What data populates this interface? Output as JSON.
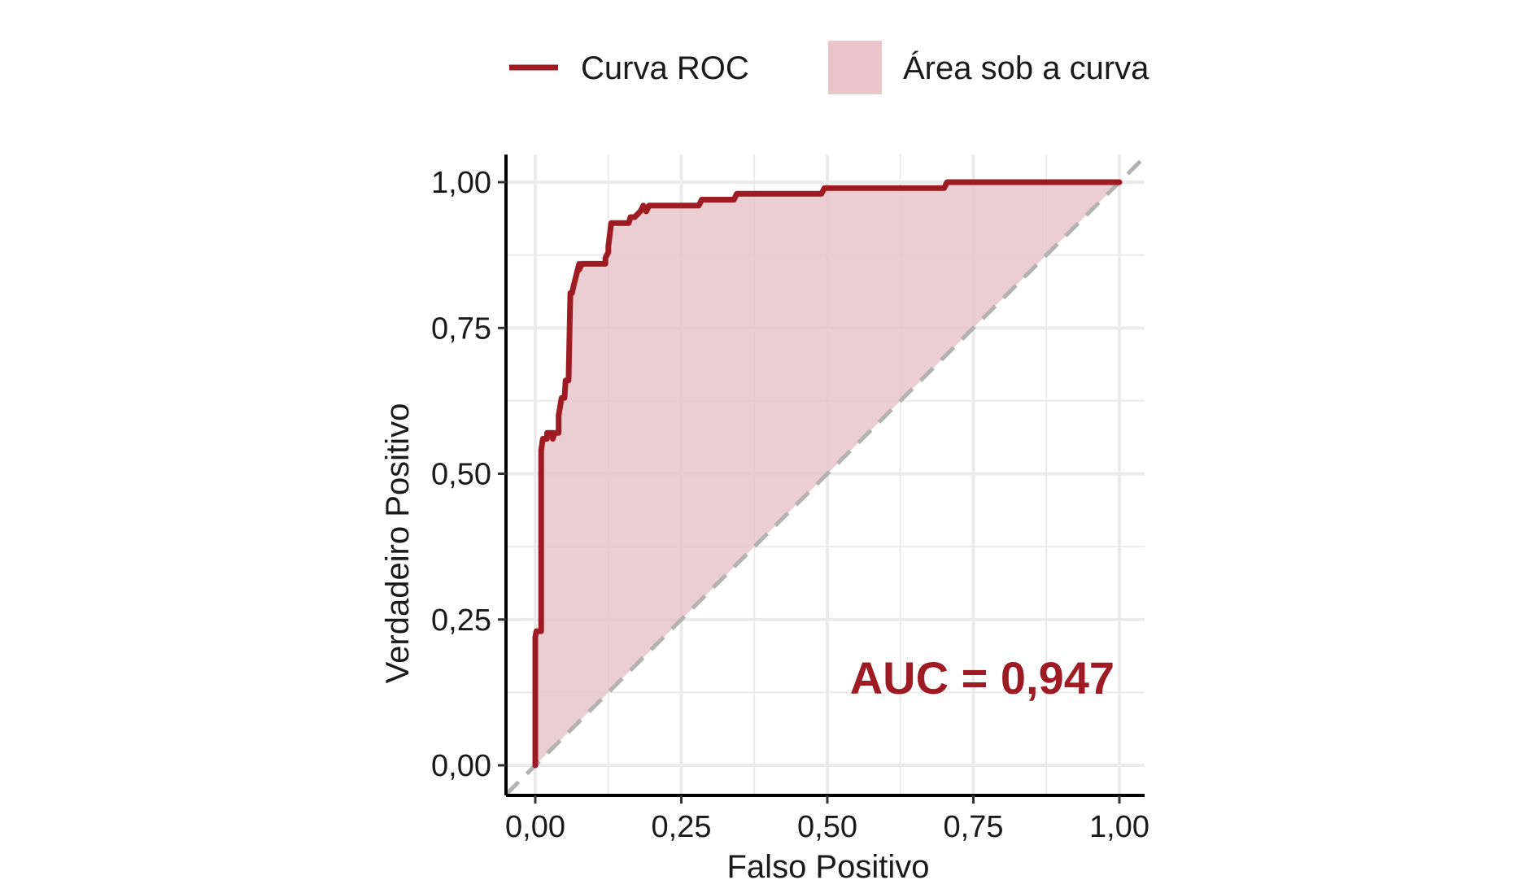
{
  "colors": {
    "curve": "#9e1b24",
    "fill": "#e8c6c9",
    "diagonal": "#b3b3b3",
    "grid": "#ebebeb",
    "axis": "#000000"
  },
  "legend": {
    "position": "top",
    "curve_label": "Curva ROC",
    "area_label": "Área sob a curva"
  },
  "auc_text": "AUC = 0,947",
  "chart_data": {
    "type": "line",
    "title": "",
    "xlabel": "Falso Positivo",
    "ylabel": "Verdadeiro Positivo",
    "xlim": [
      0,
      1
    ],
    "ylim": [
      0,
      1
    ],
    "grid": true,
    "x_ticks": [
      "0,00",
      "0,25",
      "0,50",
      "0,75",
      "1,00"
    ],
    "y_ticks": [
      "0,00",
      "0,25",
      "0,50",
      "0,75",
      "1,00"
    ],
    "reference_line": "diagonal",
    "series": [
      {
        "name": "Curva ROC",
        "x": [
          0.0,
          0.0,
          0.002,
          0.01,
          0.01,
          0.013,
          0.02,
          0.02,
          0.03,
          0.03,
          0.033,
          0.04,
          0.04,
          0.045,
          0.05,
          0.052,
          0.055,
          0.057,
          0.06,
          0.063,
          0.065,
          0.065,
          0.07,
          0.075,
          0.075,
          0.08,
          0.12,
          0.12,
          0.125,
          0.125,
          0.13,
          0.135,
          0.16,
          0.163,
          0.17,
          0.18,
          0.185,
          0.19,
          0.195,
          0.28,
          0.285,
          0.3,
          0.34,
          0.345,
          0.355,
          0.49,
          0.495,
          0.505,
          0.7,
          0.705,
          0.71,
          1.0
        ],
        "y": [
          0.0,
          0.22,
          0.23,
          0.23,
          0.54,
          0.56,
          0.56,
          0.57,
          0.57,
          0.56,
          0.57,
          0.57,
          0.6,
          0.63,
          0.63,
          0.66,
          0.66,
          0.66,
          0.81,
          0.81,
          0.82,
          0.82,
          0.84,
          0.86,
          0.85,
          0.86,
          0.86,
          0.87,
          0.88,
          0.89,
          0.93,
          0.93,
          0.93,
          0.94,
          0.94,
          0.95,
          0.96,
          0.95,
          0.96,
          0.96,
          0.97,
          0.97,
          0.97,
          0.98,
          0.98,
          0.98,
          0.99,
          0.99,
          0.99,
          1.0,
          1.0,
          1.0
        ]
      }
    ]
  }
}
